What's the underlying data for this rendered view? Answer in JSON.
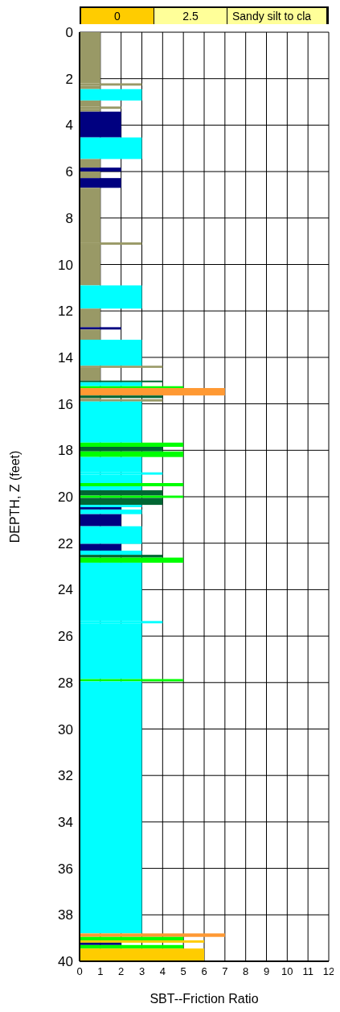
{
  "chart_data": {
    "type": "histogram",
    "orientation": "horizontal",
    "xlabel": "SBT--Friction Ratio",
    "ylabel": "DEPTH, Z (feet)",
    "annotations": [
      "0",
      "2.5",
      "Sandy silt to cla"
    ],
    "bins": [
      0,
      2.2,
      2.3,
      2.45,
      2.94,
      3.2,
      3.3,
      3.42,
      4.53,
      5.46,
      5.83,
      6.0,
      6.28,
      6.7,
      9.05,
      9.15,
      10.9,
      11.9,
      12.7,
      12.8,
      13.24,
      14.36,
      14.45,
      15.0,
      15.07,
      15.24,
      15.32,
      15.64,
      15.75,
      15.8,
      15.9,
      17.67,
      17.85,
      18.05,
      18.29,
      18.95,
      19.05,
      19.41,
      19.55,
      19.72,
      19.95,
      20.05,
      20.35,
      20.45,
      20.55,
      20.75,
      21.27,
      22.03,
      22.32,
      22.5,
      22.62,
      22.84,
      25.35,
      25.45,
      27.85,
      27.95,
      38.8,
      38.95,
      39.1,
      39.2,
      39.3,
      39.45,
      40
    ],
    "values": [
      1,
      3,
      1,
      3,
      1,
      2,
      1,
      2,
      3,
      1,
      2,
      1,
      2,
      1,
      3,
      1,
      3,
      1,
      2,
      1,
      3,
      4,
      1,
      4,
      3,
      5,
      7,
      4,
      1,
      4,
      3,
      5,
      4,
      5,
      3,
      4,
      3,
      5,
      3,
      4,
      5,
      4,
      3,
      2,
      3,
      2,
      3,
      2,
      3,
      4,
      5,
      3,
      4,
      3,
      5,
      3,
      7,
      5,
      6,
      2,
      5,
      6
    ],
    "colors": [
      "#999966",
      "#999966",
      "#999966",
      "#00ffff",
      "#999966",
      "#999966",
      "#999966",
      "#000080",
      "#00ffff",
      "#999966",
      "#000080",
      "#999966",
      "#000080",
      "#999966",
      "#999966",
      "#999966",
      "#00ffff",
      "#999966",
      "#000080",
      "#999966",
      "#00ffff",
      "#999966",
      "#999966",
      "#006633",
      "#00ffff",
      "#00ff00",
      "#ff9933",
      "#006633",
      "#999966",
      "#999966",
      "#00ffff",
      "#00ff00",
      "#006633",
      "#00ff00",
      "#00ffff",
      "#00ffff",
      "#00ffff",
      "#00ff00",
      "#00ffff",
      "#006633",
      "#00ff00",
      "#006633",
      "#00ffff",
      "#000080",
      "#00ffff",
      "#000080",
      "#00ffff",
      "#000080",
      "#00ffff",
      "#006633",
      "#00ff00",
      "#00ffff",
      "#00ffff",
      "#00ffff",
      "#00ff00",
      "#00ffff",
      "#ff9933",
      "#00ff00",
      "#ffcc00",
      "#000080",
      "#00ff00",
      "#ffcc00"
    ],
    "xlim": [
      0,
      12
    ],
    "xticks": [
      0,
      1,
      2,
      3,
      4,
      5,
      6,
      7,
      8,
      9,
      10,
      11,
      12
    ],
    "ylim": [
      40,
      0
    ],
    "yticks": [
      0,
      2,
      4,
      6,
      8,
      10,
      12,
      14,
      16,
      18,
      20,
      22,
      24,
      26,
      28,
      30,
      32,
      34,
      36,
      38,
      40
    ],
    "grid": true
  }
}
